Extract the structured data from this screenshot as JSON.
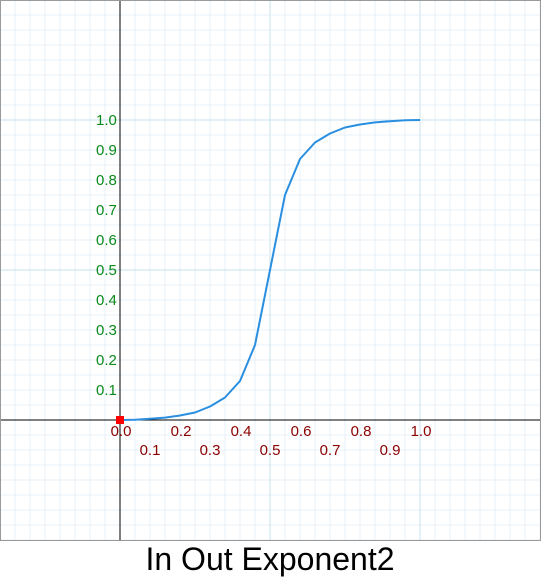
{
  "chart_data": {
    "type": "line",
    "title": "In Out Exponent2",
    "xlabel": "",
    "ylabel": "",
    "xlim": [
      -0.4,
      1.4
    ],
    "ylim": [
      -0.4,
      1.4
    ],
    "grid": true,
    "x_ticks_upper": [
      "0.0",
      "0.2",
      "0.4",
      "0.6",
      "0.8",
      "1.0"
    ],
    "x_ticks_lower": [
      "0.1",
      "0.3",
      "0.5",
      "0.7",
      "0.9"
    ],
    "y_ticks": [
      "0.1",
      "0.2",
      "0.3",
      "0.4",
      "0.5",
      "0.6",
      "0.7",
      "0.8",
      "0.9",
      "1.0"
    ],
    "series": [
      {
        "x": [
          0.0,
          0.05,
          0.1,
          0.15,
          0.2,
          0.25,
          0.3,
          0.35,
          0.4,
          0.45,
          0.5,
          0.55,
          0.6,
          0.65,
          0.7,
          0.75,
          0.8,
          0.85,
          0.9,
          0.95,
          1.0
        ],
        "y": [
          0.0,
          0.001,
          0.004,
          0.008,
          0.015,
          0.025,
          0.045,
          0.075,
          0.13,
          0.25,
          0.5,
          0.75,
          0.87,
          0.925,
          0.955,
          0.975,
          0.985,
          0.992,
          0.996,
          0.999,
          1.0
        ]
      }
    ],
    "colors": {
      "line": "#2a8fe0",
      "y_ticks": "#0a8a1a",
      "x_ticks": "#8b0000",
      "origin_marker": "#ff0000"
    }
  }
}
